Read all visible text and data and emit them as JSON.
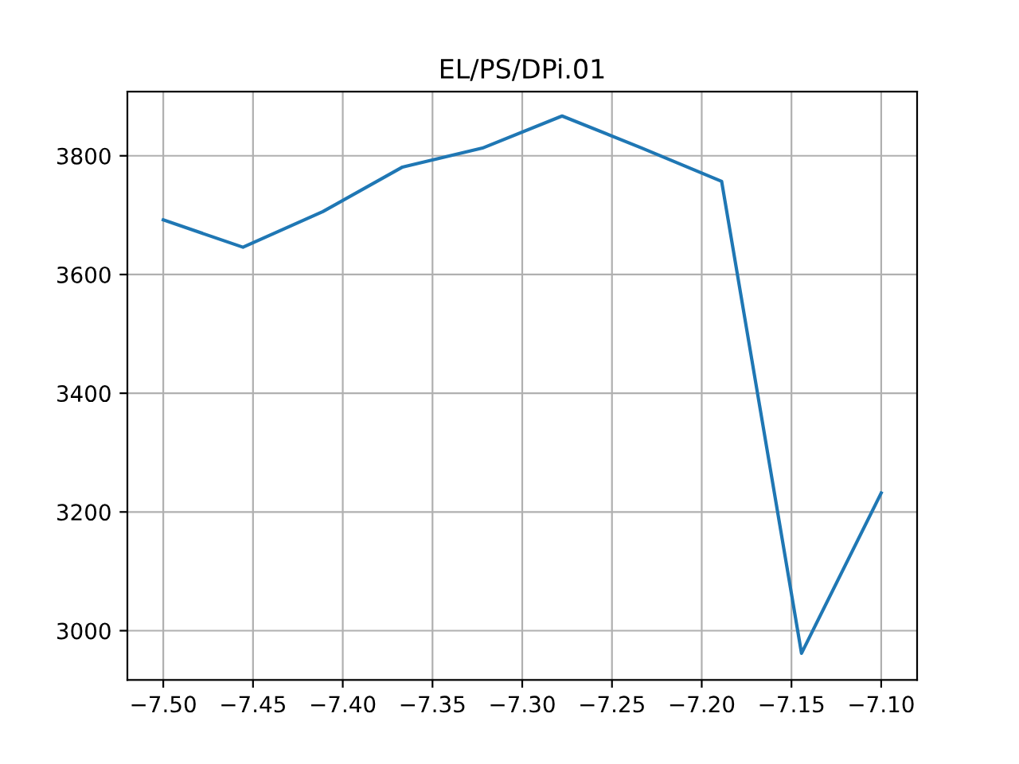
{
  "chart_data": {
    "type": "line",
    "title": "EL/PS/DPi.01",
    "x": [
      -7.5,
      -7.4556,
      -7.4111,
      -7.3667,
      -7.3222,
      -7.2778,
      -7.2333,
      -7.1889,
      -7.1444,
      -7.1
    ],
    "series": [
      {
        "color": "#1f77b4",
        "values": [
          3692,
          3646,
          3706,
          3781,
          3813,
          3867,
          3813,
          3757,
          2962,
          3232
        ]
      }
    ],
    "xlim": [
      -7.52,
      -7.08
    ],
    "ylim": [
      2917,
      3908
    ],
    "xticks": [
      {
        "value": -7.5,
        "label": "−7.50"
      },
      {
        "value": -7.45,
        "label": "−7.45"
      },
      {
        "value": -7.4,
        "label": "−7.40"
      },
      {
        "value": -7.35,
        "label": "−7.35"
      },
      {
        "value": -7.3,
        "label": "−7.30"
      },
      {
        "value": -7.25,
        "label": "−7.25"
      },
      {
        "value": -7.2,
        "label": "−7.20"
      },
      {
        "value": -7.15,
        "label": "−7.15"
      },
      {
        "value": -7.1,
        "label": "−7.10"
      }
    ],
    "yticks": [
      3000,
      3200,
      3400,
      3600,
      3800
    ],
    "grid": true
  }
}
